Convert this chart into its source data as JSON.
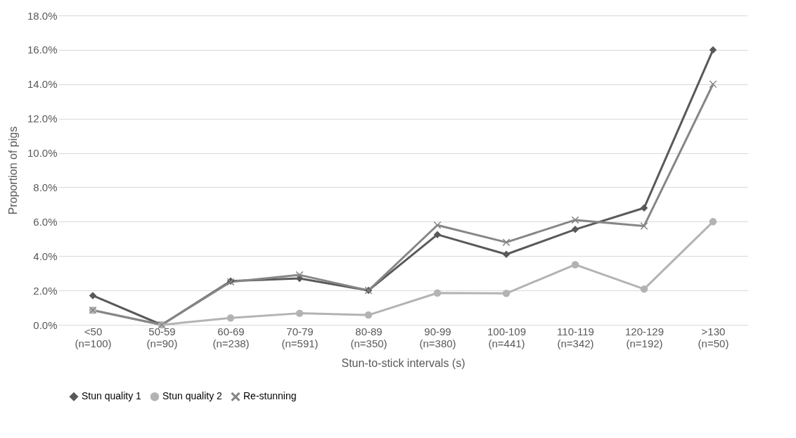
{
  "chart_data": {
    "type": "line",
    "xlabel": "Stun-to-stick intervals (s)",
    "ylabel": "Proportion of pigs",
    "categories": [
      "<50\n(n=100)",
      "50-59\n(n=90)",
      "60-69\n(n=238)",
      "70-79\n(n=591)",
      "80-89\n(n=350)",
      "90-99\n(n=380)",
      "100-109\n(n=441)",
      "110-119\n(n=342)",
      "120-129\n(n=192)",
      ">130\n(n=50)"
    ],
    "series": [
      {
        "name": "Stun quality 1",
        "color": "#595959",
        "marker": "diamond",
        "values": [
          1.7,
          0,
          2.55,
          2.7,
          2.0,
          5.25,
          4.1,
          5.55,
          6.8,
          16.0
        ]
      },
      {
        "name": "Stun quality 2",
        "color": "#b3b3b3",
        "marker": "circle",
        "values": [
          0.85,
          0,
          0.4,
          0.67,
          0.57,
          1.85,
          1.83,
          3.5,
          2.08,
          6.0
        ]
      },
      {
        "name": "Re-stunning",
        "color": "#868686",
        "marker": "cross",
        "values": [
          0.85,
          0,
          2.5,
          2.9,
          2.0,
          5.8,
          4.8,
          6.1,
          5.75,
          14.0
        ]
      }
    ],
    "ylim": [
      0,
      18
    ],
    "yticks": [
      {
        "value": 0,
        "label": "0.0%"
      },
      {
        "value": 2,
        "label": "2.0%"
      },
      {
        "value": 4,
        "label": "4.0%"
      },
      {
        "value": 6,
        "label": "6.0%"
      },
      {
        "value": 8,
        "label": "8.0%"
      },
      {
        "value": 10,
        "label": "10.0%"
      },
      {
        "value": 12,
        "label": "12.0%"
      },
      {
        "value": 14,
        "label": "14.0%"
      },
      {
        "value": 16,
        "label": "16.0%"
      },
      {
        "value": 18,
        "label": "18.0%"
      }
    ],
    "grid": "y",
    "legend": "bottom",
    "line_style": "solid"
  }
}
